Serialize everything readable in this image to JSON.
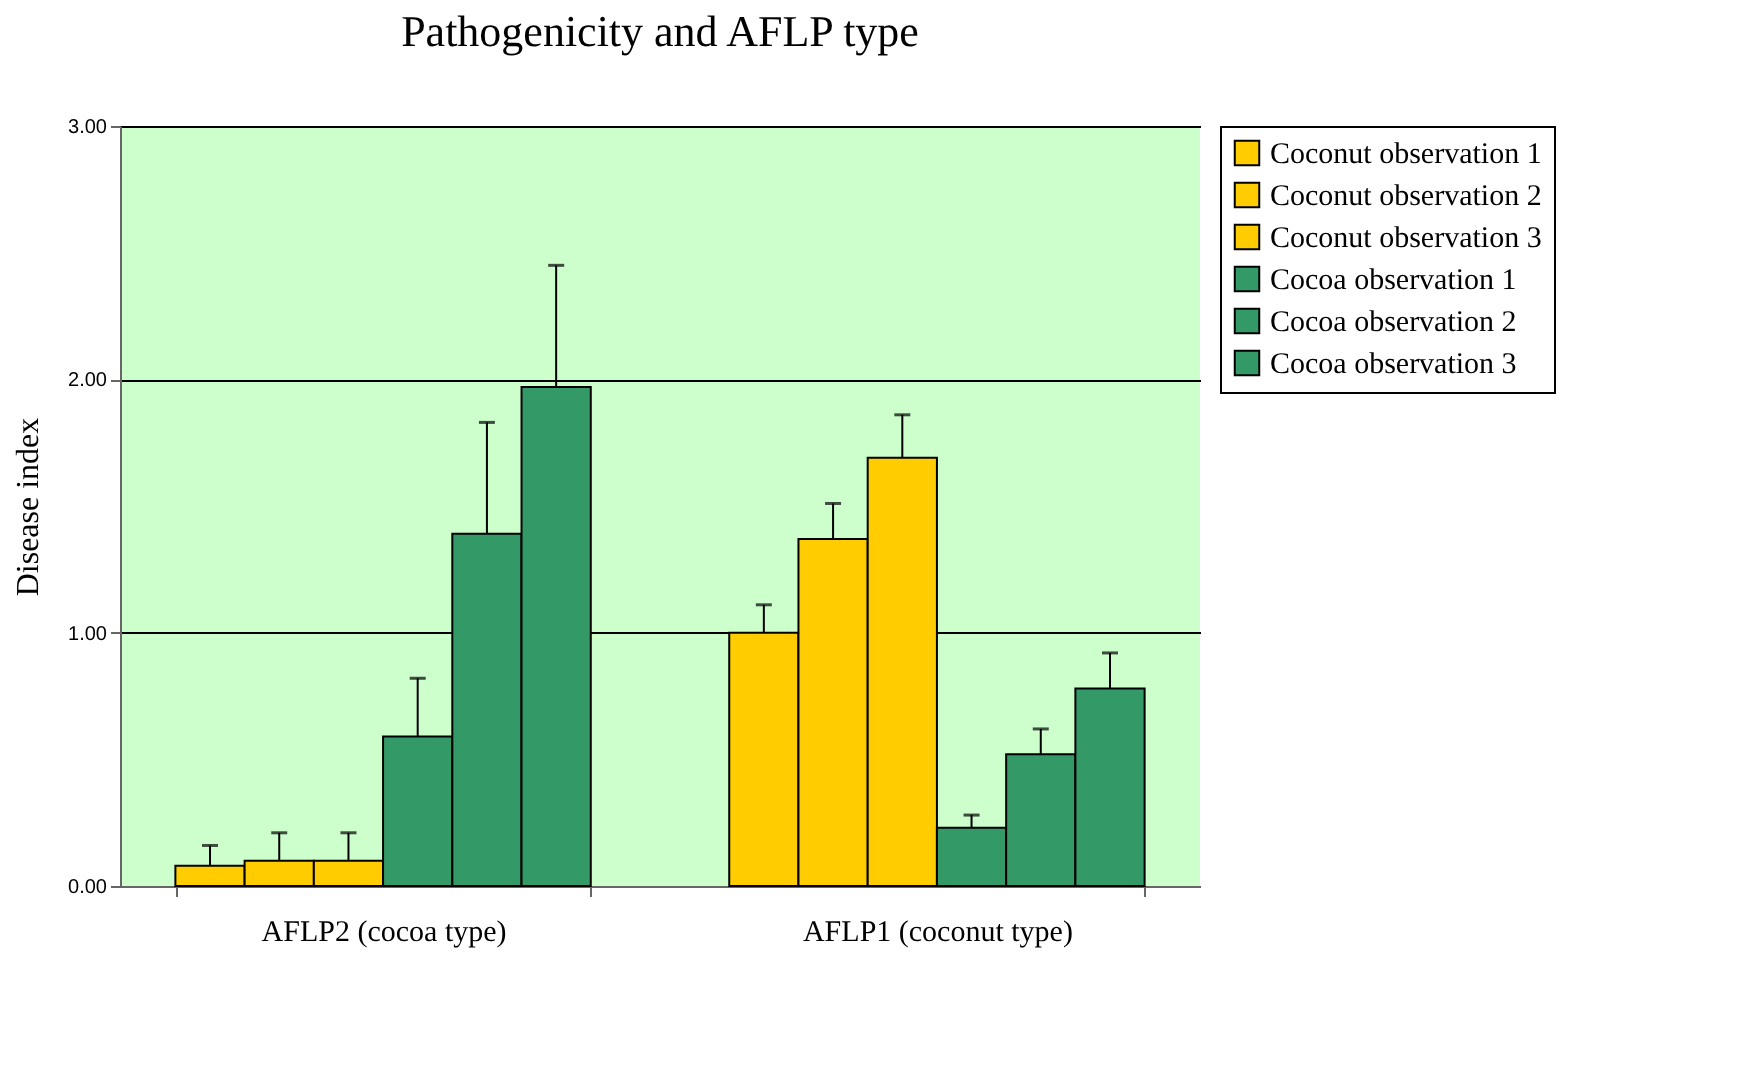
{
  "chart_data": {
    "type": "bar",
    "title": "Pathogenicity and AFLP type",
    "ylabel": "Disease index",
    "categories": [
      "AFLP2 (cocoa type)",
      "AFLP1 (coconut type)"
    ],
    "series": [
      {
        "name": "Coconut observation 1",
        "color": "#ffcc00",
        "values": [
          0.08,
          1.0
        ],
        "errors": [
          [
            0.08,
            0.16
          ],
          [
            1.0,
            1.11
          ]
        ]
      },
      {
        "name": "Coconut observation 2",
        "color": "#ffcc00",
        "values": [
          0.1,
          1.37
        ],
        "errors": [
          [
            0.1,
            0.21
          ],
          [
            1.37,
            1.51
          ]
        ]
      },
      {
        "name": "Coconut observation 3",
        "color": "#ffcc00",
        "values": [
          0.1,
          1.69
        ],
        "errors": [
          [
            0.1,
            0.21
          ],
          [
            1.69,
            1.86
          ]
        ]
      },
      {
        "name": "Cocoa observation 1",
        "color": "#339966",
        "values": [
          0.59,
          0.23
        ],
        "errors": [
          [
            0.59,
            0.82
          ],
          [
            0.23,
            0.28
          ]
        ]
      },
      {
        "name": "Cocoa observation 2",
        "color": "#339966",
        "values": [
          1.39,
          0.52
        ],
        "errors": [
          [
            1.39,
            1.83
          ],
          [
            0.52,
            0.62
          ]
        ]
      },
      {
        "name": "Cocoa observation 3",
        "color": "#339966",
        "values": [
          1.97,
          0.78
        ],
        "errors": [
          [
            1.97,
            2.45
          ],
          [
            0.78,
            0.92
          ]
        ]
      }
    ],
    "ylim": [
      0,
      3
    ],
    "yticks": [
      {
        "value": 0,
        "label": "0.00"
      },
      {
        "value": 1,
        "label": "1.00"
      },
      {
        "value": 2,
        "label": "2.00"
      },
      {
        "value": 3,
        "label": "3.00"
      }
    ],
    "grid": "y",
    "legend": "right"
  }
}
